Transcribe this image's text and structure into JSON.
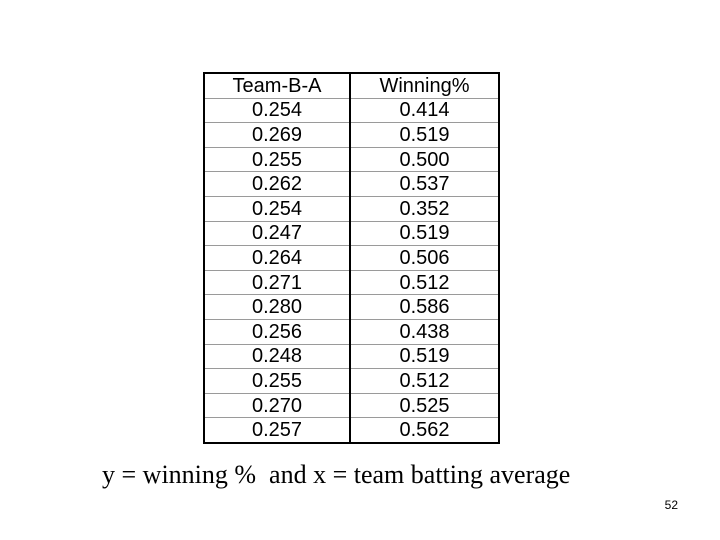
{
  "table": {
    "headers": [
      "Team-B-A",
      "Winning%"
    ],
    "rows": [
      [
        "0.254",
        "0.414"
      ],
      [
        "0.269",
        "0.519"
      ],
      [
        "0.255",
        "0.500"
      ],
      [
        "0.262",
        "0.537"
      ],
      [
        "0.254",
        "0.352"
      ],
      [
        "0.247",
        "0.519"
      ],
      [
        "0.264",
        "0.506"
      ],
      [
        "0.271",
        "0.512"
      ],
      [
        "0.280",
        "0.586"
      ],
      [
        "0.256",
        "0.438"
      ],
      [
        "0.248",
        "0.519"
      ],
      [
        "0.255",
        "0.512"
      ],
      [
        "0.270",
        "0.525"
      ],
      [
        "0.257",
        "0.562"
      ]
    ]
  },
  "caption": "y = winning %  and x = team batting average",
  "slide_number": "52"
}
